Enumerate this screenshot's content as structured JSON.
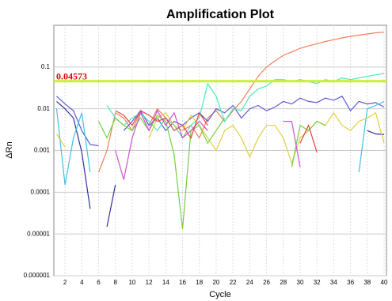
{
  "chart_data": {
    "type": "line",
    "title": "Amplification Plot",
    "x_label": "Cycle",
    "y_label": "ΔRn",
    "log_y": true,
    "grid": true,
    "threshold": 0.04573,
    "threshold_color": "#ccee33",
    "threshold_label_color": "#dd0000",
    "x": [
      1,
      2,
      3,
      4,
      5,
      6,
      7,
      8,
      9,
      10,
      11,
      12,
      13,
      14,
      15,
      16,
      17,
      18,
      19,
      20,
      21,
      22,
      23,
      24,
      25,
      26,
      27,
      28,
      29,
      30,
      31,
      32,
      33,
      34,
      35,
      36,
      37,
      38,
      39,
      40
    ],
    "xlim": [
      1,
      40
    ],
    "xticks": [
      2,
      4,
      6,
      8,
      10,
      12,
      14,
      16,
      18,
      20,
      22,
      24,
      26,
      28,
      30,
      32,
      34,
      36,
      38,
      40
    ],
    "ylim": [
      1e-06,
      1
    ],
    "yticks": [
      0.1,
      0.01,
      0.001,
      0.0001,
      1e-05,
      1e-06
    ],
    "series": [
      {
        "color": "#f0805a",
        "values": [
          null,
          null,
          null,
          null,
          null,
          0.0003,
          0.001,
          0.008,
          0.006,
          0.003,
          0.009,
          0.004,
          0.01,
          0.006,
          0.004,
          0.003,
          0.004,
          0.002,
          0.006,
          0.009,
          0.005,
          0.009,
          0.015,
          0.03,
          0.06,
          0.1,
          0.14,
          0.19,
          0.23,
          0.28,
          0.32,
          0.36,
          0.41,
          0.45,
          0.5,
          0.54,
          0.58,
          0.62,
          0.66,
          0.68
        ]
      },
      {
        "color": "#5b5bd0",
        "values": [
          0.02,
          0.013,
          0.009,
          0.003,
          0.0014,
          0.0013,
          null,
          null,
          0.003,
          0.005,
          0.009,
          0.004,
          0.006,
          0.003,
          0.005,
          0.004,
          0.006,
          0.008,
          0.005,
          0.01,
          0.008,
          0.012,
          0.006,
          0.01,
          0.012,
          0.009,
          0.011,
          0.015,
          0.013,
          0.018,
          0.015,
          0.014,
          0.018,
          0.016,
          0.02,
          0.009,
          0.015,
          0.013,
          0.014,
          0.011
        ]
      },
      {
        "color": "#3030a0",
        "values": [
          0.015,
          0.01,
          0.006,
          0.0009,
          4e-05,
          null,
          1.5e-05,
          0.00015,
          null,
          null,
          null,
          null,
          null,
          null,
          null,
          null,
          null,
          null,
          null,
          null,
          null,
          null,
          null,
          null,
          null,
          null,
          null,
          null,
          null,
          null,
          null,
          null,
          null,
          null,
          null,
          null,
          null,
          0.003,
          0.0025,
          0.0024
        ]
      },
      {
        "color": "#4de8b8",
        "values": [
          null,
          null,
          null,
          null,
          null,
          null,
          0.012,
          0.006,
          0.004,
          0.006,
          0.008,
          0.005,
          0.003,
          0.006,
          0.004,
          0.002,
          0.004,
          0.006,
          0.04,
          0.02,
          0.005,
          0.01,
          0.009,
          0.02,
          0.03,
          0.035,
          0.05,
          0.05,
          0.045,
          0.05,
          0.045,
          0.04,
          0.05,
          0.045,
          0.055,
          0.05,
          0.055,
          0.06,
          0.065,
          0.07
        ]
      },
      {
        "color": "#45c0e8",
        "values": [
          0.01,
          0.00015,
          0.002,
          0.008,
          0.0003,
          null,
          0.0008,
          null,
          null,
          null,
          null,
          null,
          null,
          null,
          null,
          null,
          null,
          null,
          null,
          null,
          null,
          null,
          null,
          null,
          null,
          null,
          null,
          null,
          null,
          null,
          null,
          null,
          null,
          null,
          null,
          null,
          0.0003,
          0.01,
          0.012,
          0.015
        ]
      },
      {
        "color": "#e0d040",
        "values": [
          0.0025,
          0.0012,
          null,
          null,
          null,
          null,
          null,
          null,
          null,
          null,
          null,
          0.002,
          0.006,
          0.008,
          0.004,
          0.003,
          0.007,
          0.004,
          0.002,
          0.001,
          0.003,
          0.004,
          0.002,
          0.0007,
          0.002,
          0.004,
          0.004,
          0.002,
          0.0005,
          0.002,
          0.003,
          0.005,
          0.004,
          0.008,
          0.004,
          0.003,
          0.005,
          0.006,
          0.008,
          0.0015
        ]
      },
      {
        "color": "#70d040",
        "values": [
          null,
          null,
          null,
          null,
          null,
          0.005,
          0.002,
          0.006,
          0.004,
          0.003,
          0.006,
          0.003,
          0.007,
          0.005,
          0.0008,
          1.3e-05,
          0.003,
          0.004,
          0.0015,
          0.003,
          0.006,
          null,
          null,
          null,
          null,
          null,
          null,
          null,
          0.0004,
          0.004,
          0.003,
          0.005,
          0.004,
          null,
          null,
          null,
          null,
          null,
          null,
          null
        ]
      },
      {
        "color": "#d050d0",
        "values": [
          null,
          null,
          null,
          null,
          null,
          null,
          null,
          0.001,
          0.0002,
          0.002,
          0.008,
          0.003,
          0.009,
          0.004,
          0.008,
          0.002,
          0.003,
          0.005,
          0.003,
          null,
          null,
          null,
          null,
          null,
          null,
          null,
          null,
          0.005,
          0.005,
          0.0004,
          null,
          null,
          null,
          null,
          null,
          null,
          null,
          null,
          null,
          null
        ]
      },
      {
        "color": "#e04848",
        "values": [
          null,
          null,
          null,
          null,
          null,
          null,
          null,
          0.009,
          0.007,
          0.004,
          0.009,
          0.007,
          0.005,
          0.006,
          0.003,
          0.004,
          0.002,
          0.008,
          0.004,
          null,
          null,
          null,
          null,
          null,
          null,
          null,
          null,
          null,
          null,
          0.0015,
          0.004,
          0.0009,
          null,
          null,
          null,
          null,
          null,
          null,
          null,
          null
        ]
      }
    ]
  }
}
